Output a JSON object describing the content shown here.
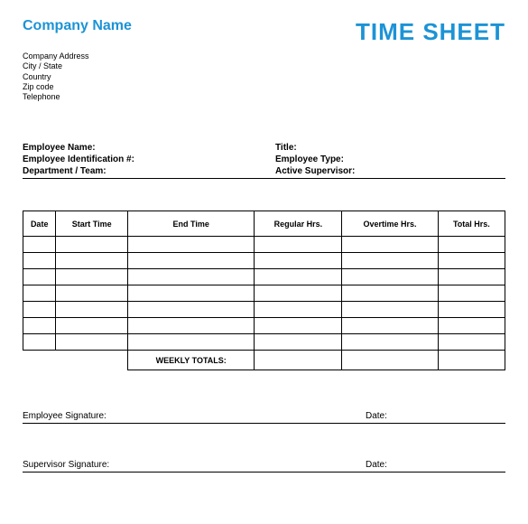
{
  "header": {
    "company_name": "Company Name",
    "doc_title": "TIME SHEET"
  },
  "address": {
    "line1": "Company Address",
    "line2": "City / State",
    "line3": "Country",
    "line4": "Zip code",
    "line5": "Telephone"
  },
  "employee_info": {
    "name_label": "Employee Name:",
    "title_label": "Title:",
    "id_label": "Employee Identification #:",
    "type_label": "Employee Type:",
    "dept_label": "Department / Team:",
    "supervisor_label": "Active Supervisor:"
  },
  "table": {
    "columns": [
      "Date",
      "Start Time",
      "End Time",
      "Regular Hrs.",
      "Overtime Hrs.",
      "Total Hrs."
    ],
    "rows": [
      [
        "",
        "",
        "",
        "",
        "",
        ""
      ],
      [
        "",
        "",
        "",
        "",
        "",
        ""
      ],
      [
        "",
        "",
        "",
        "",
        "",
        ""
      ],
      [
        "",
        "",
        "",
        "",
        "",
        ""
      ],
      [
        "",
        "",
        "",
        "",
        "",
        ""
      ],
      [
        "",
        "",
        "",
        "",
        "",
        ""
      ],
      [
        "",
        "",
        "",
        "",
        "",
        ""
      ]
    ],
    "weekly_totals_label": "WEEKLY TOTALS:",
    "totals": [
      "",
      "",
      ""
    ]
  },
  "signatures": {
    "employee_label": "Employee Signature:",
    "supervisor_label": "Supervisor Signature:",
    "date_label": "Date:"
  },
  "colors": {
    "accent": "#1c93d6",
    "text": "#000000",
    "background": "#ffffff",
    "border": "#000000"
  }
}
